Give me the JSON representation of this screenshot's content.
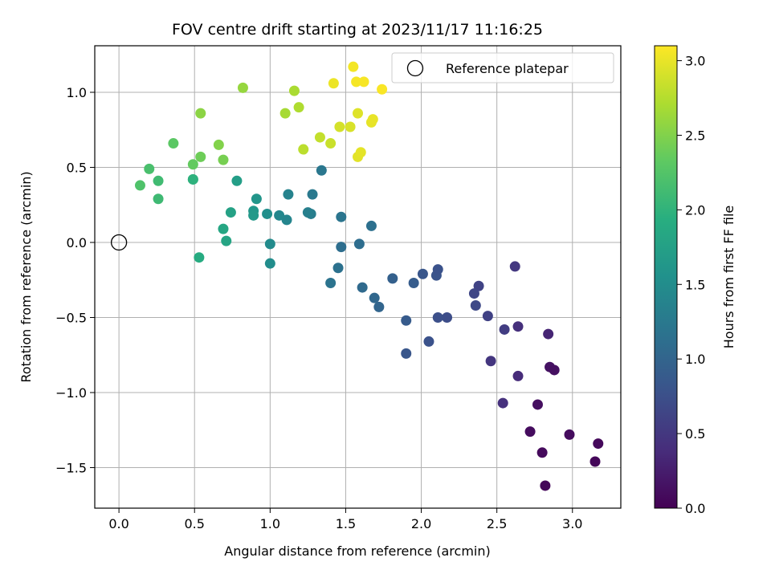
{
  "chart_data": {
    "type": "scatter",
    "title": "FOV centre drift starting at 2023/11/17 11:16:25",
    "xlabel": "Angular distance from reference (arcmin)",
    "ylabel": "Rotation from reference (arcmin)",
    "xlim": [
      -0.16,
      3.32
    ],
    "ylim": [
      -1.77,
      1.31
    ],
    "x_ticks": [
      0.0,
      0.5,
      1.0,
      1.5,
      2.0,
      2.5,
      3.0
    ],
    "x_tick_labels": [
      "0.0",
      "0.5",
      "1.0",
      "1.5",
      "2.0",
      "2.5",
      "3.0"
    ],
    "y_ticks": [
      -1.5,
      -1.0,
      -0.5,
      0.0,
      0.5,
      1.0
    ],
    "y_tick_labels": [
      "−1.5",
      "−1.0",
      "−0.5",
      "0.0",
      "0.5",
      "1.0"
    ],
    "grid": true,
    "colormap": "viridis",
    "colorbar": {
      "label": "Hours from first FF file",
      "range": [
        0.0,
        3.1
      ],
      "ticks": [
        0.0,
        0.5,
        1.0,
        1.5,
        2.0,
        2.5,
        3.0
      ],
      "tick_labels": [
        "0.0",
        "0.5",
        "1.0",
        "1.5",
        "2.0",
        "2.5",
        "3.0"
      ]
    },
    "legend": {
      "position": "top-right",
      "entries": [
        {
          "label": "Reference platepar",
          "marker": "open-circle"
        }
      ]
    },
    "reference_point": {
      "x": 0.0,
      "y": 0.0
    },
    "points": [
      {
        "x": 2.82,
        "y": -1.62,
        "t": 0.05
      },
      {
        "x": 2.8,
        "y": -1.4,
        "t": 0.08
      },
      {
        "x": 2.72,
        "y": -1.26,
        "t": 0.1
      },
      {
        "x": 2.77,
        "y": -1.08,
        "t": 0.12
      },
      {
        "x": 3.15,
        "y": -1.46,
        "t": 0.05
      },
      {
        "x": 3.17,
        "y": -1.34,
        "t": 0.07
      },
      {
        "x": 2.98,
        "y": -1.28,
        "t": 0.1
      },
      {
        "x": 2.85,
        "y": -0.83,
        "t": 0.15
      },
      {
        "x": 2.88,
        "y": -0.85,
        "t": 0.13
      },
      {
        "x": 2.84,
        "y": -0.61,
        "t": 0.32
      },
      {
        "x": 2.64,
        "y": -0.89,
        "t": 0.38
      },
      {
        "x": 2.54,
        "y": -1.07,
        "t": 0.43
      },
      {
        "x": 2.46,
        "y": -0.79,
        "t": 0.48
      },
      {
        "x": 2.64,
        "y": -0.56,
        "t": 0.42
      },
      {
        "x": 2.62,
        "y": -0.16,
        "t": 0.5
      },
      {
        "x": 2.55,
        "y": -0.58,
        "t": 0.55
      },
      {
        "x": 2.44,
        "y": -0.49,
        "t": 0.6
      },
      {
        "x": 2.38,
        "y": -0.29,
        "t": 0.62
      },
      {
        "x": 2.35,
        "y": -0.34,
        "t": 0.65
      },
      {
        "x": 2.36,
        "y": -0.42,
        "t": 0.68
      },
      {
        "x": 2.17,
        "y": -0.5,
        "t": 0.72
      },
      {
        "x": 2.11,
        "y": -0.5,
        "t": 0.75
      },
      {
        "x": 2.1,
        "y": -0.22,
        "t": 0.8
      },
      {
        "x": 2.11,
        "y": -0.18,
        "t": 0.78
      },
      {
        "x": 2.01,
        "y": -0.21,
        "t": 0.82
      },
      {
        "x": 2.05,
        "y": -0.66,
        "t": 0.78
      },
      {
        "x": 1.9,
        "y": -0.74,
        "t": 0.82
      },
      {
        "x": 1.9,
        "y": -0.52,
        "t": 0.88
      },
      {
        "x": 1.95,
        "y": -0.27,
        "t": 0.9
      },
      {
        "x": 1.81,
        "y": -0.24,
        "t": 0.95
      },
      {
        "x": 1.72,
        "y": -0.43,
        "t": 1.0
      },
      {
        "x": 1.69,
        "y": -0.37,
        "t": 1.03
      },
      {
        "x": 1.61,
        "y": -0.3,
        "t": 1.07
      },
      {
        "x": 1.59,
        "y": -0.01,
        "t": 1.1
      },
      {
        "x": 1.47,
        "y": -0.03,
        "t": 1.12
      },
      {
        "x": 1.45,
        "y": -0.17,
        "t": 1.15
      },
      {
        "x": 1.4,
        "y": -0.27,
        "t": 1.18
      },
      {
        "x": 1.67,
        "y": 0.11,
        "t": 1.14
      },
      {
        "x": 1.47,
        "y": 0.17,
        "t": 1.2
      },
      {
        "x": 1.34,
        "y": 0.48,
        "t": 1.22
      },
      {
        "x": 1.28,
        "y": 0.32,
        "t": 1.25
      },
      {
        "x": 1.27,
        "y": 0.19,
        "t": 1.3
      },
      {
        "x": 1.25,
        "y": 0.2,
        "t": 1.33
      },
      {
        "x": 1.12,
        "y": 0.32,
        "t": 1.37
      },
      {
        "x": 1.11,
        "y": 0.15,
        "t": 1.4
      },
      {
        "x": 1.06,
        "y": 0.18,
        "t": 1.43
      },
      {
        "x": 1.0,
        "y": -0.01,
        "t": 1.47
      },
      {
        "x": 1.0,
        "y": -0.14,
        "t": 1.5
      },
      {
        "x": 0.98,
        "y": 0.19,
        "t": 1.52
      },
      {
        "x": 0.91,
        "y": 0.29,
        "t": 1.6
      },
      {
        "x": 0.89,
        "y": 0.21,
        "t": 1.63
      },
      {
        "x": 0.89,
        "y": 0.18,
        "t": 1.66
      },
      {
        "x": 0.78,
        "y": 0.41,
        "t": 1.72
      },
      {
        "x": 0.74,
        "y": 0.2,
        "t": 1.76
      },
      {
        "x": 0.71,
        "y": 0.01,
        "t": 1.8
      },
      {
        "x": 0.69,
        "y": 0.09,
        "t": 1.83
      },
      {
        "x": 0.53,
        "y": -0.1,
        "t": 1.9
      },
      {
        "x": 0.49,
        "y": 0.42,
        "t": 1.95
      },
      {
        "x": 0.49,
        "y": 0.42,
        "t": 1.98
      },
      {
        "x": 0.26,
        "y": 0.29,
        "t": 2.1
      },
      {
        "x": 0.26,
        "y": 0.41,
        "t": 2.12
      },
      {
        "x": 0.2,
        "y": 0.49,
        "t": 2.18
      },
      {
        "x": 0.14,
        "y": 0.38,
        "t": 2.22
      },
      {
        "x": 0.36,
        "y": 0.66,
        "t": 2.3
      },
      {
        "x": 0.49,
        "y": 0.52,
        "t": 2.35
      },
      {
        "x": 0.54,
        "y": 0.57,
        "t": 2.4
      },
      {
        "x": 0.69,
        "y": 0.55,
        "t": 2.45
      },
      {
        "x": 0.66,
        "y": 0.65,
        "t": 2.5
      },
      {
        "x": 0.54,
        "y": 0.86,
        "t": 2.55
      },
      {
        "x": 0.82,
        "y": 1.03,
        "t": 2.6
      },
      {
        "x": 1.1,
        "y": 0.86,
        "t": 2.68
      },
      {
        "x": 1.16,
        "y": 1.01,
        "t": 2.7
      },
      {
        "x": 1.19,
        "y": 0.9,
        "t": 2.72
      },
      {
        "x": 1.22,
        "y": 0.62,
        "t": 2.78
      },
      {
        "x": 1.33,
        "y": 0.7,
        "t": 2.82
      },
      {
        "x": 1.4,
        "y": 0.66,
        "t": 2.85
      },
      {
        "x": 1.46,
        "y": 0.77,
        "t": 2.9
      },
      {
        "x": 1.53,
        "y": 0.77,
        "t": 2.92
      },
      {
        "x": 1.58,
        "y": 0.86,
        "t": 2.95
      },
      {
        "x": 1.58,
        "y": 0.57,
        "t": 2.97
      },
      {
        "x": 1.6,
        "y": 0.6,
        "t": 2.98
      },
      {
        "x": 1.67,
        "y": 0.8,
        "t": 2.99
      },
      {
        "x": 1.68,
        "y": 0.82,
        "t": 3.0
      },
      {
        "x": 1.42,
        "y": 1.06,
        "t": 3.02
      },
      {
        "x": 1.55,
        "y": 1.17,
        "t": 3.05
      },
      {
        "x": 1.57,
        "y": 1.07,
        "t": 3.06
      },
      {
        "x": 1.62,
        "y": 1.07,
        "t": 3.07
      },
      {
        "x": 1.74,
        "y": 1.02,
        "t": 3.08
      }
    ]
  }
}
